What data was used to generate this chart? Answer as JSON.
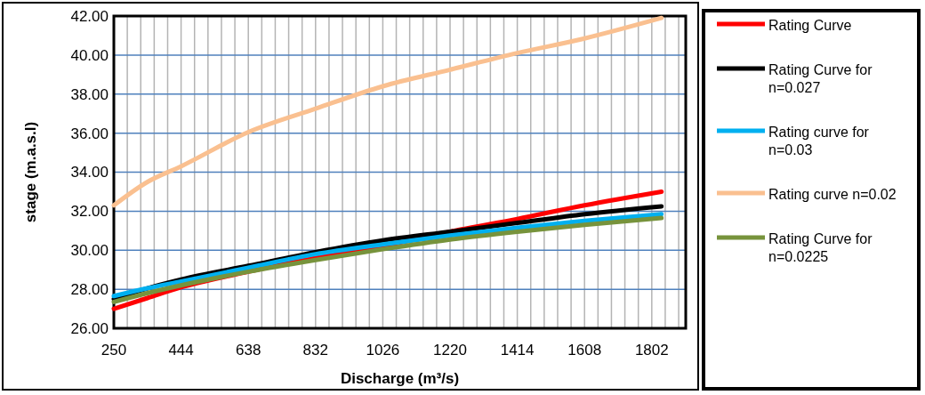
{
  "chart_data": {
    "type": "line",
    "xlabel": "Discharge (m³/s)",
    "ylabel": "stage (m.a.s.l)",
    "xlim": [
      250,
      1900
    ],
    "ylim": [
      26,
      42
    ],
    "xticks": [
      250,
      {
        "value": 288.8,
        "label": null
      },
      {
        "value": 327.6,
        "label": null
      },
      {
        "value": 366.4,
        "label": null
      },
      {
        "value": 405.2,
        "label": null
      },
      444,
      {
        "value": 482.8,
        "label": null
      },
      {
        "value": 521.6,
        "label": null
      },
      {
        "value": 560.4,
        "label": null
      },
      {
        "value": 599.2,
        "label": null
      },
      638,
      {
        "value": 676.8,
        "label": null
      },
      {
        "value": 715.6,
        "label": null
      },
      {
        "value": 754.4,
        "label": null
      },
      {
        "value": 793.2,
        "label": null
      },
      832,
      {
        "value": 870.8,
        "label": null
      },
      {
        "value": 909.6,
        "label": null
      },
      {
        "value": 948.4,
        "label": null
      },
      {
        "value": 987.2,
        "label": null
      },
      1026,
      {
        "value": 1064.8,
        "label": null
      },
      {
        "value": 1103.6,
        "label": null
      },
      {
        "value": 1142.4,
        "label": null
      },
      {
        "value": 1181.2,
        "label": null
      },
      1220,
      {
        "value": 1258.8,
        "label": null
      },
      {
        "value": 1297.6,
        "label": null
      },
      {
        "value": 1336.4,
        "label": null
      },
      {
        "value": 1375.2,
        "label": null
      },
      1414,
      {
        "value": 1452.8,
        "label": null
      },
      {
        "value": 1491.6,
        "label": null
      },
      {
        "value": 1530.4,
        "label": null
      },
      {
        "value": 1569.2,
        "label": null
      },
      1608,
      {
        "value": 1646.8,
        "label": null
      },
      {
        "value": 1685.6,
        "label": null
      },
      {
        "value": 1724.4,
        "label": null
      },
      {
        "value": 1763.2,
        "label": null
      },
      1802,
      {
        "value": 1840.8,
        "label": null
      },
      {
        "value": 1879.6,
        "label": null
      }
    ],
    "yticks": [
      {
        "value": 26,
        "label": "26.00"
      },
      {
        "value": 28,
        "label": "28.00"
      },
      {
        "value": 30,
        "label": "30.00"
      },
      {
        "value": 32,
        "label": "32.00"
      },
      {
        "value": 34,
        "label": "34.00"
      },
      {
        "value": 36,
        "label": "36.00"
      },
      {
        "value": 38,
        "label": "38.00"
      },
      {
        "value": 40,
        "label": "40.00"
      },
      {
        "value": 42,
        "label": "42.00"
      }
    ],
    "x": [
      250,
      347,
      444,
      638,
      832,
      1026,
      1220,
      1414,
      1608,
      1830
    ],
    "grid": true,
    "legend": "right",
    "marker": "none",
    "line_style": "solid",
    "series": [
      {
        "name": "Rating Curve",
        "color": "#ff0000",
        "values": [
          27.0,
          27.55,
          28.1,
          28.9,
          29.6,
          30.2,
          30.95,
          31.6,
          32.3,
          33.0
        ]
      },
      {
        "name": "Rating Curve for n=0.027",
        "color": "#000000",
        "values": [
          27.5,
          28.05,
          28.5,
          29.2,
          29.9,
          30.5,
          30.95,
          31.4,
          31.85,
          32.25
        ]
      },
      {
        "name": "Rating curve for n=0.03",
        "color": "#00b0f0",
        "values": [
          27.65,
          28.05,
          28.4,
          29.1,
          29.8,
          30.3,
          30.75,
          31.15,
          31.5,
          31.85
        ]
      },
      {
        "name": "Rating curve n=0.02",
        "color": "#fac090",
        "values": [
          32.3,
          33.5,
          34.3,
          36.05,
          37.25,
          38.4,
          39.25,
          40.1,
          40.85,
          41.9
        ]
      },
      {
        "name": "Rating Curve for n=0.0225",
        "color": "#77933c",
        "values": [
          27.35,
          27.8,
          28.2,
          28.9,
          29.5,
          30.05,
          30.55,
          30.95,
          31.3,
          31.65
        ]
      }
    ]
  }
}
